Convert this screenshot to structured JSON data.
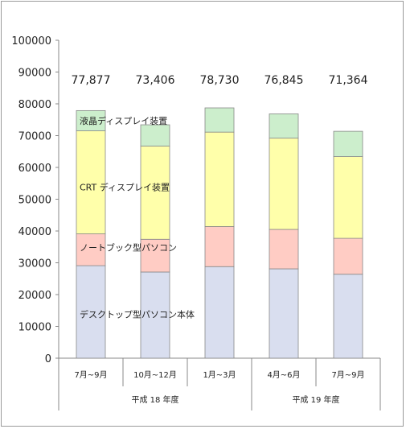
{
  "chart_data": {
    "type": "bar",
    "stacked": true,
    "categories": [
      "7月~9月",
      "10月~12月",
      "1月~3月",
      "4月~6月",
      "7月~9月"
    ],
    "groups": [
      {
        "label": "平成 18 年度",
        "categories": [
          0,
          1,
          2
        ]
      },
      {
        "label": "平成 19 年度",
        "categories": [
          3,
          4
        ]
      }
    ],
    "series": [
      {
        "name": "デスクトップ型パソコン本体",
        "color": "#d9deef",
        "values": [
          29100,
          27100,
          28800,
          28100,
          26400
        ]
      },
      {
        "name": "ノートブック型パソコン",
        "color": "#ffccc4",
        "values": [
          10000,
          10300,
          12600,
          12400,
          11300
        ]
      },
      {
        "name": "CRT ディスプレイ装置",
        "color": "#ffffaa",
        "values": [
          32400,
          29300,
          29700,
          28700,
          25700
        ]
      },
      {
        "name": "液晶ディスプレイ装置",
        "color": "#cceecc",
        "values": [
          6377,
          6706,
          7630,
          7645,
          7964
        ]
      }
    ],
    "totals": [
      77877,
      73406,
      78730,
      76845,
      71364
    ],
    "total_labels": [
      "77,877",
      "73,406",
      "78,730",
      "76,845",
      "71,364"
    ],
    "ylim": [
      0,
      100000
    ],
    "yticks": [
      0,
      10000,
      20000,
      30000,
      40000,
      50000,
      60000,
      70000,
      80000,
      90000,
      100000
    ],
    "ytick_labels": [
      "0",
      "10000",
      "20000",
      "30000",
      "40000",
      "50000",
      "60000",
      "70000",
      "80000",
      "90000",
      "100000"
    ],
    "grid": false,
    "legend": "inline labels on first bar",
    "title": "",
    "xlabel": "",
    "ylabel": ""
  }
}
